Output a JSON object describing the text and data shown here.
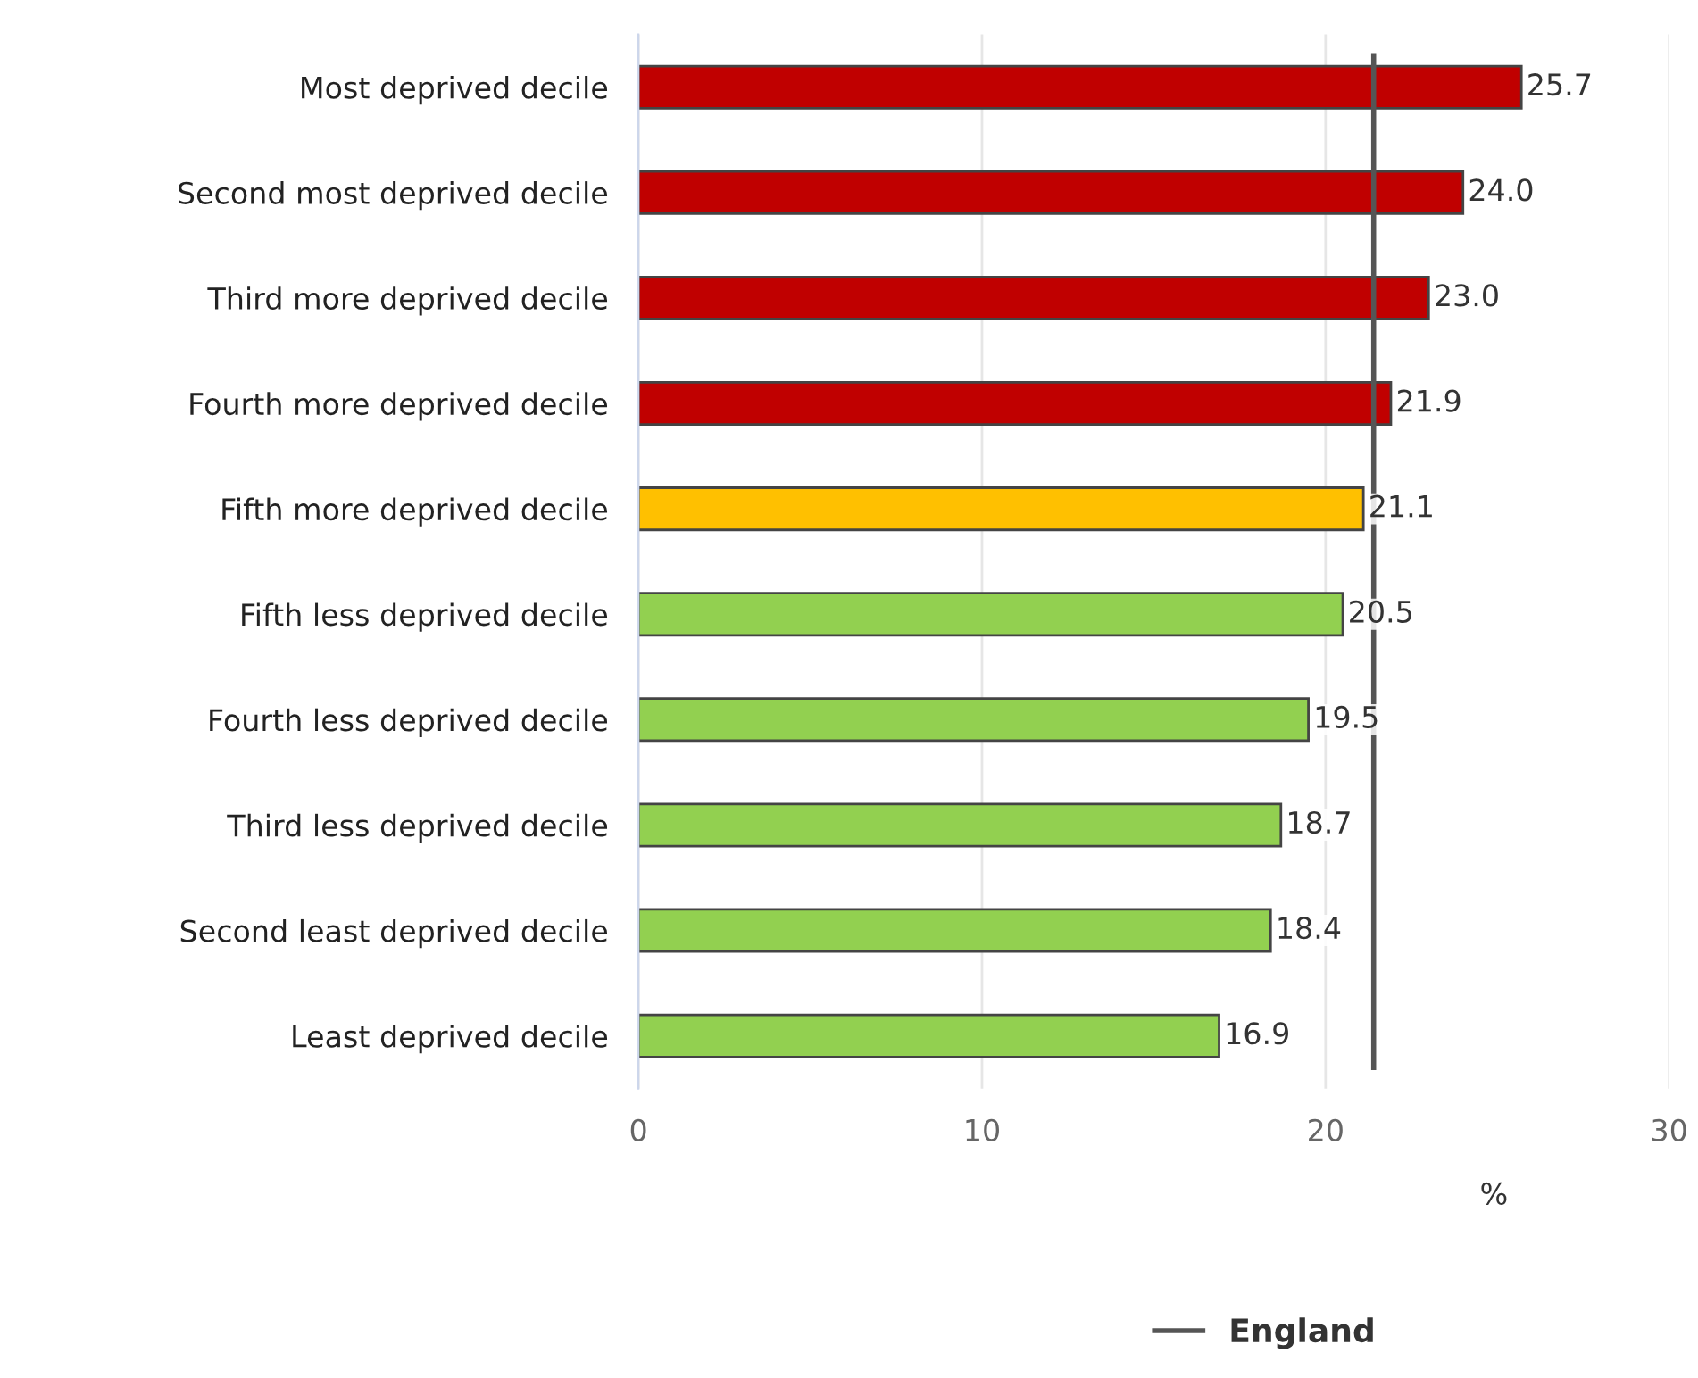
{
  "chart_data": {
    "type": "bar",
    "orientation": "horizontal",
    "xlabel": "%",
    "categories": [
      "Most deprived decile",
      "Second most deprived decile",
      "Third more deprived decile",
      "Fourth more deprived decile",
      "Fifth more deprived decile",
      "Fifth less deprived decile",
      "Fourth less deprived decile",
      "Third less deprived decile",
      "Second least deprived decile",
      "Least deprived decile"
    ],
    "values": [
      25.7,
      24.0,
      23.0,
      21.9,
      21.1,
      20.5,
      19.5,
      18.7,
      18.4,
      16.9
    ],
    "colors": [
      "#c00000",
      "#c00000",
      "#c00000",
      "#c00000",
      "#ffc000",
      "#92d050",
      "#92d050",
      "#92d050",
      "#92d050",
      "#92d050"
    ],
    "value_labels": [
      "25.7",
      "24.0",
      "23.0",
      "21.9",
      "21.1",
      "20.5",
      "19.5",
      "18.7",
      "18.4",
      "16.9"
    ],
    "xlim": [
      0,
      30
    ],
    "xticks": [
      0,
      10,
      20,
      30
    ],
    "grid": "x",
    "legend": "bottom",
    "ref_lines": [
      {
        "axis": "x",
        "value": 21.4,
        "label": "England",
        "color": "#555555"
      }
    ]
  }
}
